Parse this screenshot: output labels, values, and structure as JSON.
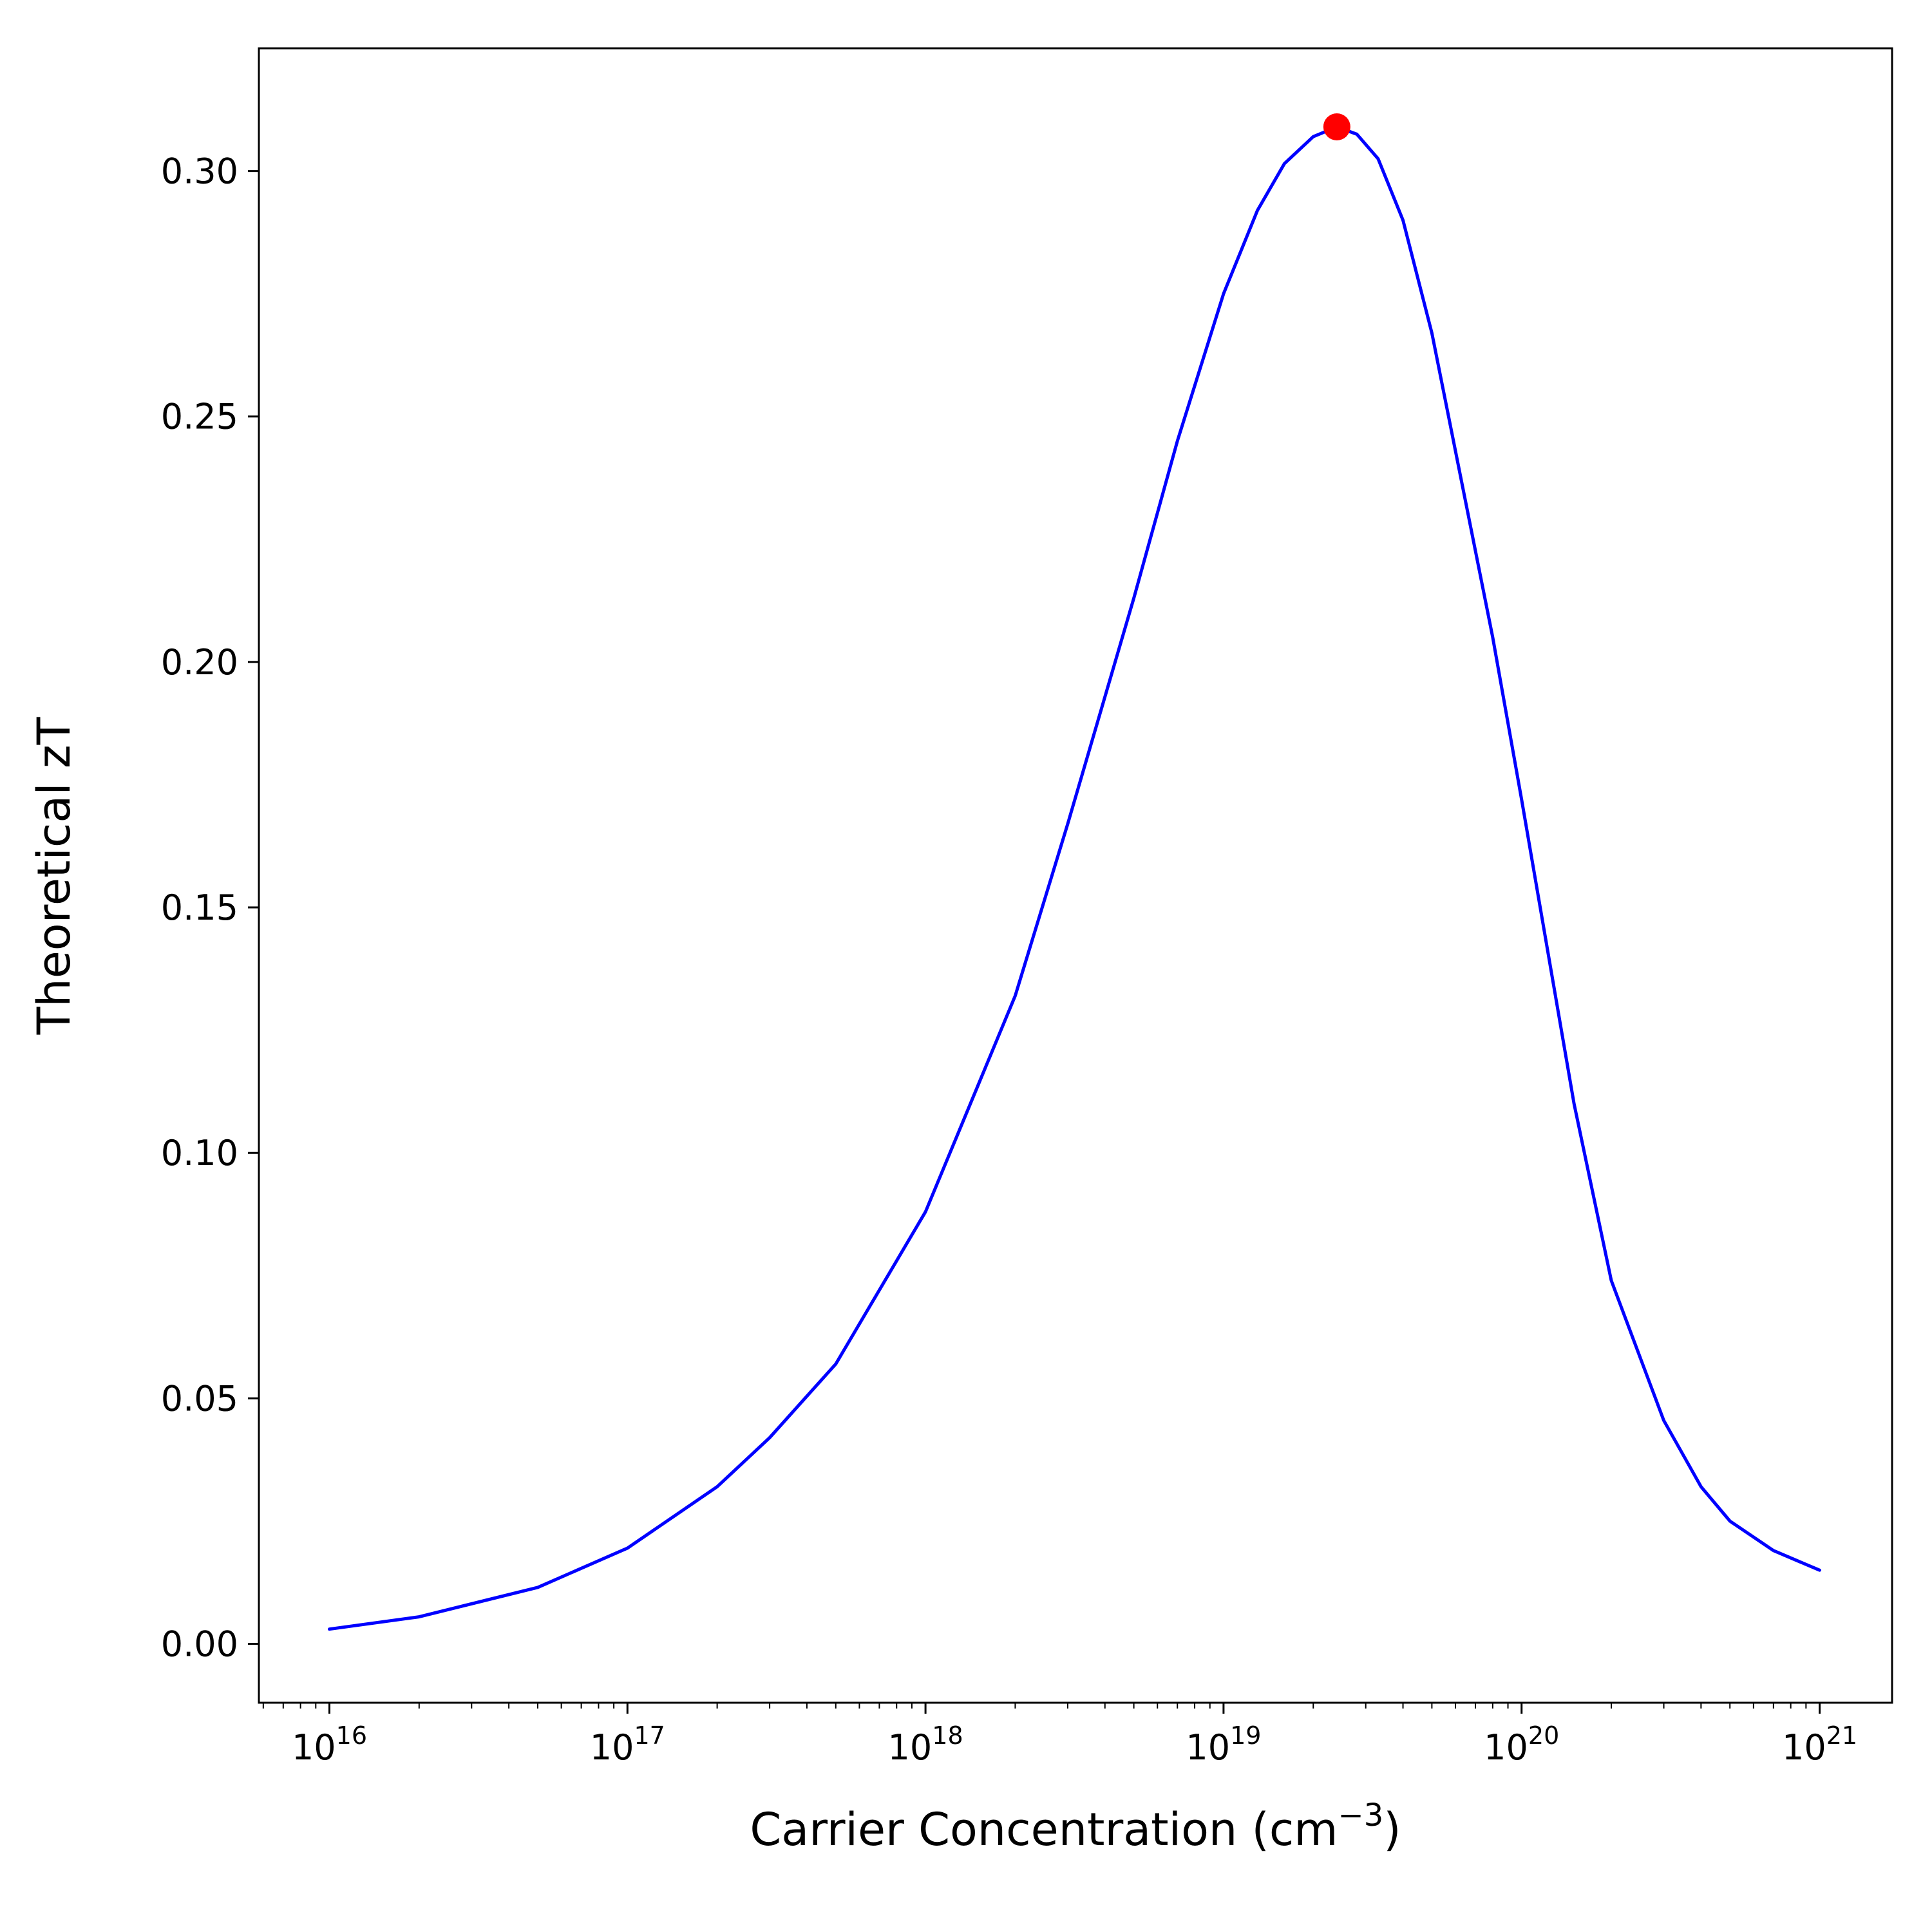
{
  "chart_data": {
    "type": "line",
    "title": "",
    "xlabel": {
      "text": "Carrier Concentration (cm",
      "superscript": "−3",
      "suffix": ")"
    },
    "ylabel": "Theoretical zT",
    "x_scale": "log",
    "y_scale": "linear",
    "xlim": [
      5800000000000000.0,
      1.75e+21
    ],
    "ylim": [
      -0.012,
      0.325
    ],
    "grid": false,
    "legend": "none",
    "x_ticks": [
      {
        "value": 1e+16,
        "base": "10",
        "exponent": "16"
      },
      {
        "value": 1e+17,
        "base": "10",
        "exponent": "17"
      },
      {
        "value": 1e+18,
        "base": "10",
        "exponent": "18"
      },
      {
        "value": 1e+19,
        "base": "10",
        "exponent": "19"
      },
      {
        "value": 1e+20,
        "base": "10",
        "exponent": "20"
      },
      {
        "value": 1e+21,
        "base": "10",
        "exponent": "21"
      }
    ],
    "y_ticks": [
      {
        "value": 0.0,
        "label": "0.00"
      },
      {
        "value": 0.05,
        "label": "0.05"
      },
      {
        "value": 0.1,
        "label": "0.10"
      },
      {
        "value": 0.15,
        "label": "0.15"
      },
      {
        "value": 0.2,
        "label": "0.20"
      },
      {
        "value": 0.25,
        "label": "0.25"
      },
      {
        "value": 0.3,
        "label": "0.30"
      }
    ],
    "series": [
      {
        "color": "#0000ff",
        "x": [
          1e+16,
          2e+16,
          5e+16,
          1e+17,
          2e+17,
          3e+17,
          5e+17,
          1e+18,
          2e+18,
          3e+18,
          5e+18,
          7e+18,
          1e+19,
          1.3e+19,
          1.6e+19,
          2e+19,
          2.4e+19,
          2.8e+19,
          3.3e+19,
          4e+19,
          5e+19,
          6e+19,
          8e+19,
          1e+20,
          1.5e+20,
          2e+20,
          3e+20,
          4e+20,
          5e+20,
          7e+20,
          1e+21
        ],
        "y": [
          0.003,
          0.0055,
          0.0115,
          0.0195,
          0.032,
          0.042,
          0.057,
          0.088,
          0.132,
          0.167,
          0.213,
          0.245,
          0.275,
          0.292,
          0.3015,
          0.307,
          0.309,
          0.3075,
          0.3025,
          0.29,
          0.267,
          0.243,
          0.205,
          0.172,
          0.11,
          0.074,
          0.0455,
          0.032,
          0.025,
          0.019,
          0.015
        ]
      }
    ],
    "markers": [
      {
        "x": 2.4e+19,
        "y": 0.309,
        "color": "#ff0000"
      }
    ]
  }
}
